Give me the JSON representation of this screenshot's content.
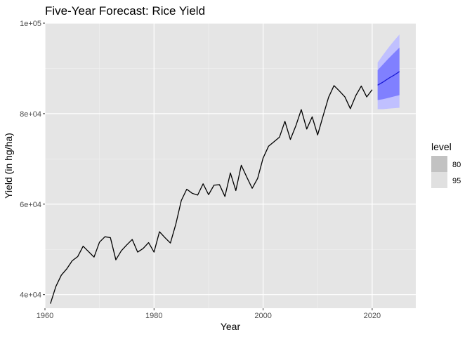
{
  "chart_data": {
    "type": "line",
    "title": "Five-Year Forecast: Rice Yield",
    "xlabel": "Year",
    "ylabel": "Yield (in hg/ha)",
    "xlim": [
      1960,
      2028
    ],
    "ylim": [
      37000,
      100000
    ],
    "x_ticks": [
      1960,
      1980,
      2000,
      2020
    ],
    "x_tick_labels": [
      "1960",
      "1980",
      "2000",
      "2020"
    ],
    "y_ticks": [
      40000,
      60000,
      80000,
      100000
    ],
    "y_tick_labels": [
      "4e+04",
      "6e+04",
      "8e+04",
      "1e+05"
    ],
    "grid": true,
    "legend_position": "right",
    "legend": {
      "title": "level",
      "items": [
        {
          "label": "80",
          "color": "#c2c2c2"
        },
        {
          "label": "95",
          "color": "#e0e0e0"
        }
      ]
    },
    "colors": {
      "panel": "#e5e5e5",
      "grid_major": "#ffffff",
      "history_line": "#000000",
      "forecast_line": "#1a1ad6",
      "band_80": "#8080ff",
      "band_95": "#c0c0ff"
    },
    "history": {
      "x": [
        1961,
        1962,
        1963,
        1964,
        1965,
        1966,
        1967,
        1968,
        1969,
        1970,
        1971,
        1972,
        1973,
        1974,
        1975,
        1976,
        1977,
        1978,
        1979,
        1980,
        1981,
        1982,
        1983,
        1984,
        1985,
        1986,
        1987,
        1988,
        1989,
        1990,
        1991,
        1992,
        1993,
        1994,
        1995,
        1996,
        1997,
        1998,
        1999,
        2000,
        2001,
        2002,
        2003,
        2004,
        2005,
        2006,
        2007,
        2008,
        2009,
        2010,
        2011,
        2012,
        2013,
        2014,
        2015,
        2016,
        2017,
        2018,
        2019,
        2020
      ],
      "y": [
        38000,
        41800,
        44300,
        45700,
        47500,
        48400,
        50700,
        49500,
        48300,
        51600,
        52800,
        52600,
        47700,
        49700,
        51000,
        52200,
        49400,
        50200,
        51500,
        49400,
        53900,
        52600,
        51400,
        55600,
        60800,
        63300,
        62400,
        62000,
        64500,
        62100,
        64200,
        64300,
        61700,
        66900,
        63000,
        68600,
        66000,
        63500,
        65700,
        70200,
        72800,
        73800,
        74800,
        78300,
        74300,
        77300,
        80900,
        76600,
        79300,
        75300,
        79500,
        83600,
        86200,
        85000,
        83700,
        81100,
        84000,
        86100,
        83700,
        85300
      ]
    },
    "forecast": {
      "x": [
        2021,
        2022,
        2023,
        2024,
        2025
      ],
      "mean": [
        86300,
        87000,
        87800,
        88500,
        89300
      ],
      "lo80": [
        83000,
        83200,
        83500,
        83800,
        84100
      ],
      "hi80": [
        89600,
        90900,
        92200,
        93400,
        94600
      ],
      "lo95": [
        81000,
        81000,
        81100,
        81200,
        81300
      ],
      "hi95": [
        91300,
        93000,
        94600,
        96100,
        97500
      ]
    }
  }
}
